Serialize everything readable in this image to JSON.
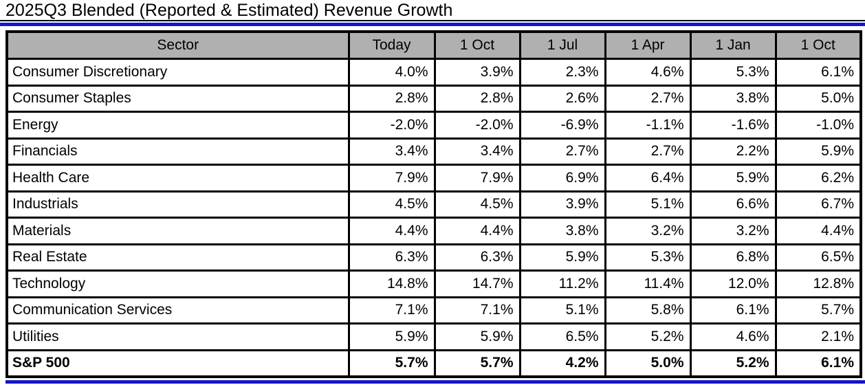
{
  "page": {
    "title": "2025Q3 Blended (Reported & Estimated) Revenue Growth"
  },
  "colors": {
    "header_bg": "#b0b0b0",
    "accent_blue": "#1616c8",
    "border_black": "#000000"
  },
  "chart_data": {
    "type": "table",
    "title": "2025Q3 Blended (Reported & Estimated) Revenue Growth",
    "columns": [
      "Sector",
      "Today",
      "1 Oct",
      "1 Jul",
      "1 Apr",
      "1 Jan",
      "1 Oct"
    ],
    "rows": [
      {
        "sector": "Consumer Discretionary",
        "values": [
          "4.0%",
          "3.9%",
          "2.3%",
          "4.6%",
          "5.3%",
          "6.1%"
        ],
        "bold": false
      },
      {
        "sector": "Consumer Staples",
        "values": [
          "2.8%",
          "2.8%",
          "2.6%",
          "2.7%",
          "3.8%",
          "5.0%"
        ],
        "bold": false
      },
      {
        "sector": "Energy",
        "values": [
          "-2.0%",
          "-2.0%",
          "-6.9%",
          "-1.1%",
          "-1.6%",
          "-1.0%"
        ],
        "bold": false
      },
      {
        "sector": "Financials",
        "values": [
          "3.4%",
          "3.4%",
          "2.7%",
          "2.7%",
          "2.2%",
          "5.9%"
        ],
        "bold": false
      },
      {
        "sector": "Health Care",
        "values": [
          "7.9%",
          "7.9%",
          "6.9%",
          "6.4%",
          "5.9%",
          "6.2%"
        ],
        "bold": false
      },
      {
        "sector": "Industrials",
        "values": [
          "4.5%",
          "4.5%",
          "3.9%",
          "5.1%",
          "6.6%",
          "6.7%"
        ],
        "bold": false
      },
      {
        "sector": "Materials",
        "values": [
          "4.4%",
          "4.4%",
          "3.8%",
          "3.2%",
          "3.2%",
          "4.4%"
        ],
        "bold": false
      },
      {
        "sector": "Real Estate",
        "values": [
          "6.3%",
          "6.3%",
          "5.9%",
          "5.3%",
          "6.8%",
          "6.5%"
        ],
        "bold": false
      },
      {
        "sector": "Technology",
        "values": [
          "14.8%",
          "14.7%",
          "11.2%",
          "11.4%",
          "12.0%",
          "12.8%"
        ],
        "bold": false
      },
      {
        "sector": "Communication Services",
        "values": [
          "7.1%",
          "7.1%",
          "5.1%",
          "5.8%",
          "6.1%",
          "5.7%"
        ],
        "bold": false
      },
      {
        "sector": "Utilities",
        "values": [
          "5.9%",
          "5.9%",
          "6.5%",
          "5.2%",
          "4.6%",
          "2.1%"
        ],
        "bold": false
      },
      {
        "sector": "S&P 500",
        "values": [
          "5.7%",
          "5.7%",
          "4.2%",
          "5.0%",
          "5.2%",
          "6.1%"
        ],
        "bold": true
      }
    ]
  }
}
